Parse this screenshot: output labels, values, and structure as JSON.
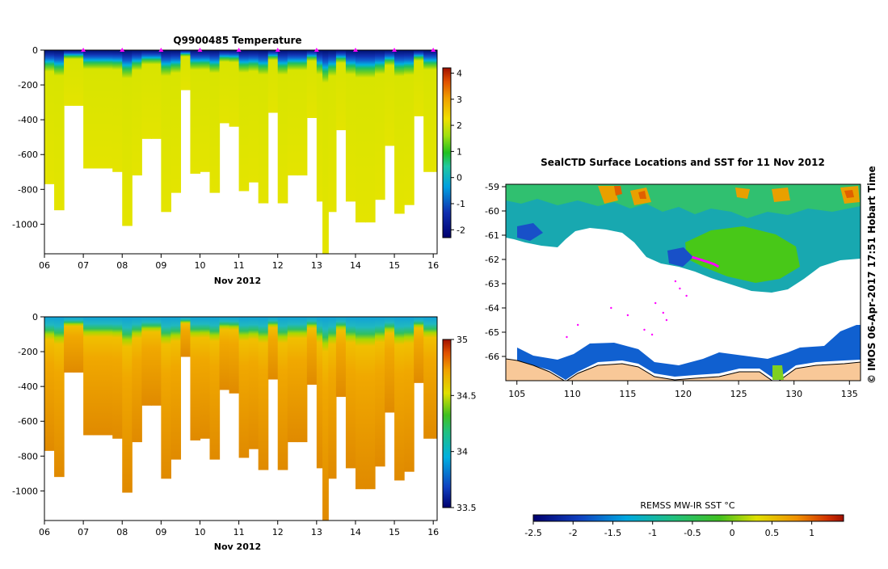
{
  "chart_data": [
    {
      "type": "heatmap",
      "title": "Q9900485  Temperature",
      "xlabel": "Nov 2012",
      "ylabel": "",
      "x_tick_labels": [
        "06",
        "07",
        "08",
        "09",
        "10",
        "11",
        "12",
        "13",
        "14",
        "15",
        "16"
      ],
      "xlim": [
        6,
        16.1
      ],
      "y_tick_labels": [
        "0",
        "-200",
        "-400",
        "-600",
        "-800",
        "-1000"
      ],
      "ylim": [
        -1170,
        0
      ],
      "colorbar": {
        "ticks": [
          "-2",
          "-1",
          "0",
          "1",
          "2",
          "3",
          "4"
        ],
        "range": [
          -2.3,
          4.2
        ]
      },
      "profile_times": [
        6.0,
        6.25,
        6.5,
        6.75,
        7.0,
        7.25,
        7.5,
        7.75,
        8.0,
        8.25,
        8.5,
        8.75,
        9.0,
        9.25,
        9.5,
        9.75,
        10.0,
        10.25,
        10.5,
        10.75,
        11.0,
        11.25,
        11.5,
        11.75,
        12.0,
        12.25,
        12.5,
        12.75,
        13.0,
        13.15,
        13.3,
        13.5,
        13.75,
        14.0,
        14.25,
        14.5,
        14.75,
        15.0,
        15.25,
        15.5,
        15.75,
        16.0
      ],
      "profile_max_depths": [
        -770,
        -920,
        -320,
        -320,
        -680,
        -680,
        -680,
        -700,
        -1010,
        -720,
        -510,
        -510,
        -930,
        -820,
        -230,
        -710,
        -700,
        -820,
        -420,
        -440,
        -810,
        -760,
        -880,
        -360,
        -880,
        -720,
        -720,
        -390,
        -870,
        -1170,
        -930,
        -460,
        -870,
        -990,
        -990,
        -860,
        -550,
        -940,
        -890,
        -380,
        -700,
        -700
      ],
      "surface_value": -2,
      "cold_layer_value": -1.3,
      "thermocline_value": 0.5,
      "deep_value": 2.0,
      "profile_markers": [
        "07",
        "08",
        "09",
        "10",
        "11",
        "12",
        "13",
        "14",
        "15",
        "16"
      ]
    },
    {
      "type": "heatmap",
      "title": "",
      "xlabel": "Nov 2012",
      "ylabel": "",
      "x_tick_labels": [
        "06",
        "07",
        "08",
        "09",
        "10",
        "11",
        "12",
        "13",
        "14",
        "15",
        "16"
      ],
      "xlim": [
        6,
        16.1
      ],
      "y_tick_labels": [
        "0",
        "-200",
        "-400",
        "-600",
        "-800",
        "-1000"
      ],
      "ylim": [
        -1170,
        0
      ],
      "colorbar": {
        "ticks": [
          "35",
          "34.5",
          "34",
          "33.5"
        ],
        "range": [
          33.5,
          35.0
        ]
      },
      "surface_value": 33.9,
      "deep_value": 34.65
    },
    {
      "type": "heatmap",
      "title": "SealCTD Surface Locations and SST for 11 Nov 2012",
      "xlabel": "",
      "ylabel": "",
      "x_tick_labels": [
        "105",
        "110",
        "115",
        "120",
        "125",
        "130",
        "135"
      ],
      "xlim": [
        104,
        136
      ],
      "y_tick_labels": [
        "-59",
        "-60",
        "-61",
        "-62",
        "-63",
        "-64",
        "-65",
        "-66"
      ],
      "ylim": [
        -67.0,
        -58.9
      ],
      "colorbar": {
        "label": "REMSS MW-IR SST °C",
        "ticks": [
          "-2.5",
          "-2",
          "-1.5",
          "-1",
          "-0.5",
          "0",
          "0.5",
          "1"
        ],
        "range": [
          -2.5,
          1.4
        ]
      },
      "seal_track": [
        [
          120.8,
          -61.9
        ],
        [
          121.5,
          -62.0
        ],
        [
          122.2,
          -62.1
        ],
        [
          122.8,
          -62.2
        ],
        [
          123.2,
          -62.3
        ]
      ],
      "seal_scatter": [
        [
          117.5,
          -63.8
        ],
        [
          118.2,
          -64.2
        ],
        [
          118.5,
          -64.5
        ],
        [
          116.5,
          -64.9
        ],
        [
          117.2,
          -65.1
        ],
        [
          110.5,
          -64.7
        ],
        [
          109.5,
          -65.2
        ],
        [
          115.0,
          -64.3
        ],
        [
          113.5,
          -64.0
        ],
        [
          119.3,
          -62.9
        ],
        [
          119.7,
          -63.2
        ],
        [
          120.3,
          -63.5
        ]
      ]
    }
  ],
  "credit": "© IMOS 06-Apr-2017 17:51 Hobart Time"
}
